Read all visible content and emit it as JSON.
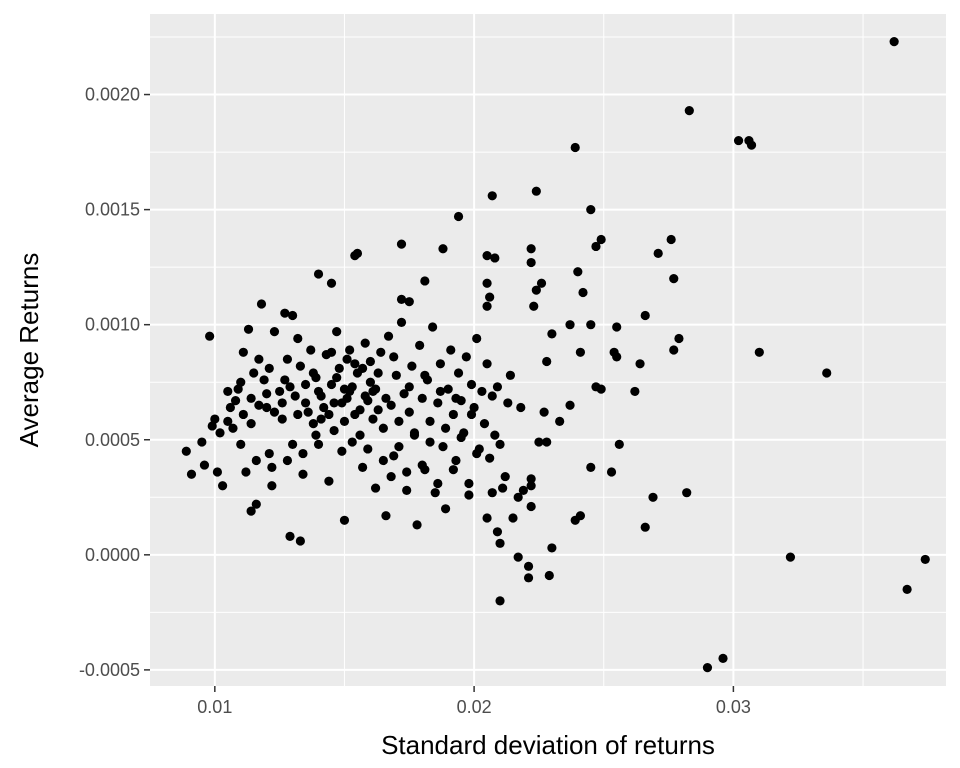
{
  "chart_data": {
    "type": "scatter",
    "title": "",
    "xlabel": "Standard deviation of returns",
    "ylabel": "Average Returns",
    "xlim": [
      0.0075,
      0.0382
    ],
    "ylim": [
      -0.00057,
      0.00235
    ],
    "x_major_ticks": [
      0.01,
      0.02,
      0.03
    ],
    "x_tick_labels": [
      "0.01",
      "0.02",
      "0.03"
    ],
    "x_minor_ticks": [
      0.015,
      0.025,
      0.035
    ],
    "y_major_ticks": [
      -0.0005,
      0.0,
      0.0005,
      0.001,
      0.0015,
      0.002
    ],
    "y_tick_labels": [
      "-0.0005",
      "0.0000",
      "0.0005",
      "0.0010",
      "0.0015",
      "0.0020"
    ],
    "y_minor_ticks": [
      -0.00025,
      0.00025,
      0.00075,
      0.00125,
      0.00175,
      0.00225
    ],
    "grid": true,
    "legend": "none",
    "colors": {
      "panel": "#EBEBEB",
      "grid": "#FFFFFF",
      "point": "#000000",
      "tick_text": "#4D4D4D",
      "tick_mark": "#333333"
    },
    "points": [
      [
        0.0362,
        0.00223
      ],
      [
        0.0283,
        0.00193
      ],
      [
        0.0302,
        0.0018
      ],
      [
        0.0306,
        0.0018
      ],
      [
        0.0307,
        0.00178
      ],
      [
        0.0239,
        0.00177
      ],
      [
        0.0224,
        0.00158
      ],
      [
        0.0207,
        0.00156
      ],
      [
        0.0245,
        0.0015
      ],
      [
        0.0194,
        0.00147
      ],
      [
        0.0249,
        0.00137
      ],
      [
        0.0276,
        0.00137
      ],
      [
        0.0247,
        0.00134
      ],
      [
        0.0172,
        0.00135
      ],
      [
        0.0222,
        0.00133
      ],
      [
        0.0188,
        0.00133
      ],
      [
        0.0271,
        0.00131
      ],
      [
        0.0155,
        0.00131
      ],
      [
        0.0154,
        0.0013
      ],
      [
        0.0205,
        0.0013
      ],
      [
        0.0208,
        0.00129
      ],
      [
        0.0222,
        0.00127
      ],
      [
        0.024,
        0.00123
      ],
      [
        0.014,
        0.00122
      ],
      [
        0.0277,
        0.0012
      ],
      [
        0.0181,
        0.00119
      ],
      [
        0.0205,
        0.00118
      ],
      [
        0.0226,
        0.00118
      ],
      [
        0.0224,
        0.00115
      ],
      [
        0.0145,
        0.00118
      ],
      [
        0.0242,
        0.00114
      ],
      [
        0.0206,
        0.00112
      ],
      [
        0.0172,
        0.00111
      ],
      [
        0.0175,
        0.0011
      ],
      [
        0.0205,
        0.00108
      ],
      [
        0.0223,
        0.00108
      ],
      [
        0.0118,
        0.00109
      ],
      [
        0.013,
        0.00104
      ],
      [
        0.0266,
        0.00104
      ],
      [
        0.031,
        0.00088
      ],
      [
        0.0336,
        0.00079
      ],
      [
        0.0279,
        0.00094
      ],
      [
        0.0277,
        0.00089
      ],
      [
        0.0255,
        0.00099
      ],
      [
        0.0237,
        0.001
      ],
      [
        0.0245,
        0.001
      ],
      [
        0.0264,
        0.00083
      ],
      [
        0.0262,
        0.00071
      ],
      [
        0.0255,
        0.00086
      ],
      [
        0.0254,
        0.00088
      ],
      [
        0.0241,
        0.00088
      ],
      [
        0.023,
        0.00096
      ],
      [
        0.0228,
        0.00084
      ],
      [
        0.0214,
        0.00078
      ],
      [
        0.0213,
        0.00066
      ],
      [
        0.0218,
        0.00064
      ],
      [
        0.0247,
        0.00073
      ],
      [
        0.0249,
        0.00072
      ],
      [
        0.0237,
        0.00065
      ],
      [
        0.0233,
        0.00058
      ],
      [
        0.0227,
        0.00062
      ],
      [
        0.0225,
        0.00049
      ],
      [
        0.0228,
        0.00049
      ],
      [
        0.0256,
        0.00048
      ],
      [
        0.0245,
        0.00038
      ],
      [
        0.0253,
        0.00036
      ],
      [
        0.0241,
        0.00017
      ],
      [
        0.0239,
        0.00015
      ],
      [
        0.0222,
        0.00033
      ],
      [
        0.0222,
        0.0003
      ],
      [
        0.0219,
        0.00028
      ],
      [
        0.0217,
        0.00025
      ],
      [
        0.0212,
        0.00034
      ],
      [
        0.0207,
        0.00027
      ],
      [
        0.0205,
        0.00016
      ],
      [
        0.0209,
        0.0001
      ],
      [
        0.021,
        5e-05
      ],
      [
        0.0215,
        0.00016
      ],
      [
        0.0217,
        -1e-05
      ],
      [
        0.0221,
        -5e-05
      ],
      [
        0.0221,
        -0.0001
      ],
      [
        0.0229,
        -9e-05
      ],
      [
        0.023,
        3e-05
      ],
      [
        0.0222,
        0.00021
      ],
      [
        0.021,
        -0.0002
      ],
      [
        0.0269,
        0.00025
      ],
      [
        0.0266,
        0.00012
      ],
      [
        0.0282,
        0.00027
      ],
      [
        0.029,
        -0.00049
      ],
      [
        0.0296,
        -0.00045
      ],
      [
        0.0322,
        -1e-05
      ],
      [
        0.0367,
        -0.00015
      ],
      [
        0.0374,
        -2e-05
      ],
      [
        0.0089,
        0.00045
      ],
      [
        0.0091,
        0.00035
      ],
      [
        0.0095,
        0.00049
      ],
      [
        0.0096,
        0.00039
      ],
      [
        0.0098,
        0.00095
      ],
      [
        0.01,
        0.00059
      ],
      [
        0.0101,
        0.00036
      ],
      [
        0.0103,
        0.0003
      ],
      [
        0.0106,
        0.00064
      ],
      [
        0.0107,
        0.00055
      ],
      [
        0.0109,
        0.00072
      ],
      [
        0.011,
        0.00048
      ],
      [
        0.0111,
        0.00088
      ],
      [
        0.0113,
        0.00098
      ],
      [
        0.0114,
        0.00057
      ],
      [
        0.0114,
        0.00019
      ],
      [
        0.0116,
        0.00022
      ],
      [
        0.0117,
        0.00085
      ],
      [
        0.0119,
        0.00076
      ],
      [
        0.012,
        0.00064
      ],
      [
        0.0121,
        0.00044
      ],
      [
        0.0122,
        0.0003
      ],
      [
        0.0123,
        0.00097
      ],
      [
        0.0125,
        0.00071
      ],
      [
        0.0126,
        0.00059
      ],
      [
        0.0127,
        0.00105
      ],
      [
        0.0128,
        0.00085
      ],
      [
        0.0129,
        8e-05
      ],
      [
        0.013,
        0.00048
      ],
      [
        0.0131,
        0.00069
      ],
      [
        0.0132,
        0.00094
      ],
      [
        0.0133,
        6e-05
      ],
      [
        0.0134,
        0.00035
      ],
      [
        0.0135,
        0.00074
      ],
      [
        0.0136,
        0.00062
      ],
      [
        0.0137,
        0.00089
      ],
      [
        0.0138,
        0.00079
      ],
      [
        0.0139,
        0.00052
      ],
      [
        0.014,
        0.00071
      ],
      [
        0.0141,
        0.00059
      ],
      [
        0.0142,
        0.00064
      ],
      [
        0.0143,
        0.00087
      ],
      [
        0.0144,
        0.00032
      ],
      [
        0.0145,
        0.00074
      ],
      [
        0.0146,
        0.00066
      ],
      [
        0.0147,
        0.00097
      ],
      [
        0.0148,
        0.00081
      ],
      [
        0.0149,
        0.00045
      ],
      [
        0.015,
        0.00072
      ],
      [
        0.015,
        0.00015
      ],
      [
        0.0151,
        0.00068
      ],
      [
        0.0152,
        0.00089
      ],
      [
        0.0153,
        0.00073
      ],
      [
        0.0154,
        0.00061
      ],
      [
        0.0155,
        0.00079
      ],
      [
        0.0156,
        0.00052
      ],
      [
        0.0157,
        0.00038
      ],
      [
        0.0158,
        0.00092
      ],
      [
        0.0159,
        0.00067
      ],
      [
        0.016,
        0.00084
      ],
      [
        0.0161,
        0.00071
      ],
      [
        0.0162,
        0.00029
      ],
      [
        0.0163,
        0.00063
      ],
      [
        0.0164,
        0.00088
      ],
      [
        0.0165,
        0.00055
      ],
      [
        0.0166,
        0.00017
      ],
      [
        0.0167,
        0.00095
      ],
      [
        0.0168,
        0.00065
      ],
      [
        0.0169,
        0.00043
      ],
      [
        0.017,
        0.00078
      ],
      [
        0.0171,
        0.00058
      ],
      [
        0.0172,
        0.00101
      ],
      [
        0.0173,
        0.0007
      ],
      [
        0.0174,
        0.00036
      ],
      [
        0.0175,
        0.00062
      ],
      [
        0.0176,
        0.00082
      ],
      [
        0.0177,
        0.00052
      ],
      [
        0.0178,
        0.00013
      ],
      [
        0.0179,
        0.00091
      ],
      [
        0.018,
        0.00068
      ],
      [
        0.0181,
        0.00037
      ],
      [
        0.0182,
        0.00076
      ],
      [
        0.0183,
        0.00058
      ],
      [
        0.0184,
        0.00099
      ],
      [
        0.0185,
        0.00027
      ],
      [
        0.0186,
        0.00066
      ],
      [
        0.0187,
        0.00083
      ],
      [
        0.0188,
        0.00047
      ],
      [
        0.0189,
        0.0002
      ],
      [
        0.019,
        0.00072
      ],
      [
        0.0191,
        0.00089
      ],
      [
        0.0192,
        0.00061
      ],
      [
        0.0193,
        0.00041
      ],
      [
        0.0194,
        0.00079
      ],
      [
        0.0195,
        0.00067
      ],
      [
        0.0196,
        0.00053
      ],
      [
        0.0197,
        0.00086
      ],
      [
        0.0198,
        0.00031
      ],
      [
        0.0199,
        0.00074
      ],
      [
        0.02,
        0.00064
      ],
      [
        0.0201,
        0.00094
      ],
      [
        0.0202,
        0.00046
      ],
      [
        0.0203,
        0.00071
      ],
      [
        0.0204,
        0.00057
      ],
      [
        0.0205,
        0.00083
      ],
      [
        0.0206,
        0.00042
      ],
      [
        0.0207,
        0.00069
      ],
      [
        0.0208,
        0.00052
      ],
      [
        0.0209,
        0.00073
      ],
      [
        0.021,
        0.00048
      ],
      [
        0.0211,
        0.00029
      ],
      [
        0.016,
        0.00075
      ],
      [
        0.0158,
        0.00069
      ],
      [
        0.0152,
        0.00071
      ],
      [
        0.0149,
        0.00066
      ],
      [
        0.0147,
        0.00077
      ],
      [
        0.0154,
        0.00083
      ],
      [
        0.0162,
        0.00072
      ],
      [
        0.0166,
        0.00068
      ],
      [
        0.0144,
        0.00061
      ],
      [
        0.0141,
        0.00069
      ],
      [
        0.0138,
        0.00057
      ],
      [
        0.0135,
        0.00066
      ],
      [
        0.0132,
        0.00061
      ],
      [
        0.0129,
        0.00073
      ],
      [
        0.0126,
        0.00066
      ],
      [
        0.0123,
        0.00062
      ],
      [
        0.012,
        0.0007
      ],
      [
        0.0117,
        0.00065
      ],
      [
        0.0114,
        0.00068
      ],
      [
        0.0111,
        0.00061
      ],
      [
        0.0108,
        0.00067
      ],
      [
        0.0105,
        0.00058
      ],
      [
        0.0102,
        0.00053
      ],
      [
        0.0099,
        0.00056
      ],
      [
        0.0105,
        0.00071
      ],
      [
        0.011,
        0.00075
      ],
      [
        0.0115,
        0.00079
      ],
      [
        0.0121,
        0.00081
      ],
      [
        0.0127,
        0.00076
      ],
      [
        0.0133,
        0.00082
      ],
      [
        0.0139,
        0.00077
      ],
      [
        0.0145,
        0.00088
      ],
      [
        0.0151,
        0.00085
      ],
      [
        0.0157,
        0.00081
      ],
      [
        0.0163,
        0.00079
      ],
      [
        0.0169,
        0.00086
      ],
      [
        0.0175,
        0.00073
      ],
      [
        0.0181,
        0.00078
      ],
      [
        0.0187,
        0.00071
      ],
      [
        0.0193,
        0.00068
      ],
      [
        0.0199,
        0.00061
      ],
      [
        0.0161,
        0.00059
      ],
      [
        0.0156,
        0.00063
      ],
      [
        0.015,
        0.00058
      ],
      [
        0.0146,
        0.00054
      ],
      [
        0.014,
        0.00048
      ],
      [
        0.0134,
        0.00044
      ],
      [
        0.0128,
        0.00041
      ],
      [
        0.0122,
        0.00038
      ],
      [
        0.0116,
        0.00041
      ],
      [
        0.0112,
        0.00036
      ],
      [
        0.0165,
        0.00041
      ],
      [
        0.0171,
        0.00047
      ],
      [
        0.0177,
        0.00053
      ],
      [
        0.0183,
        0.00049
      ],
      [
        0.0189,
        0.00055
      ],
      [
        0.0195,
        0.00051
      ],
      [
        0.0201,
        0.00044
      ],
      [
        0.0168,
        0.00034
      ],
      [
        0.0174,
        0.00028
      ],
      [
        0.018,
        0.00039
      ],
      [
        0.0186,
        0.00031
      ],
      [
        0.0192,
        0.00037
      ],
      [
        0.0198,
        0.00026
      ],
      [
        0.0159,
        0.00046
      ],
      [
        0.0153,
        0.00049
      ]
    ]
  }
}
